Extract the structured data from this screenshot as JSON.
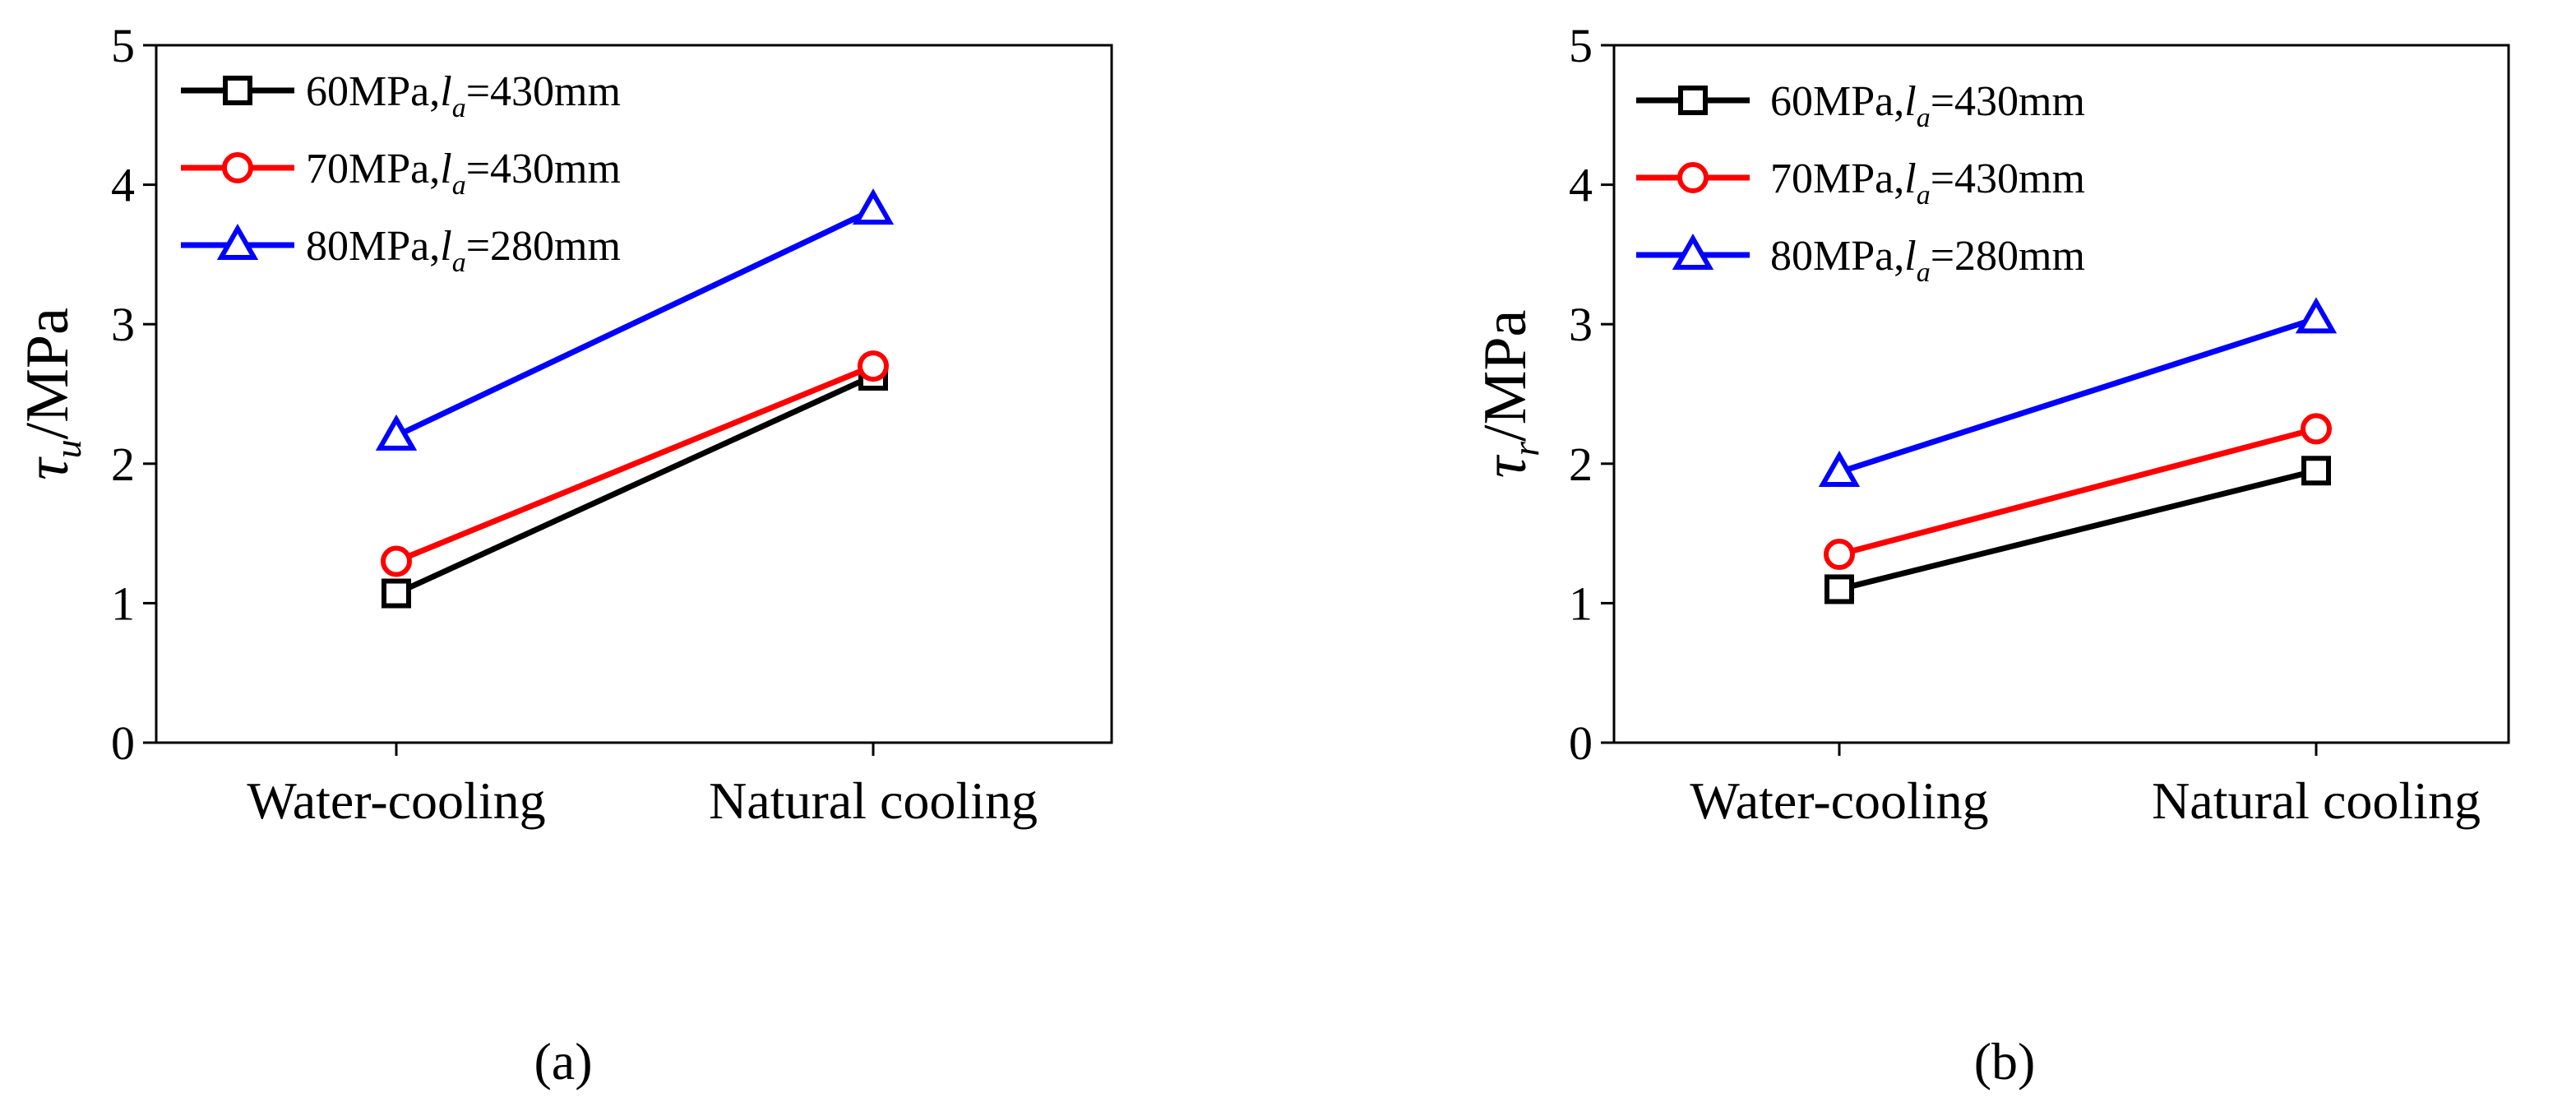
{
  "chart_data": [
    {
      "type": "line",
      "panel_label": "(a)",
      "ylabel": {
        "symbol": "τ",
        "subscript": "u",
        "unit": "/MPa"
      },
      "categories": [
        "Water-cooling",
        "Natural  cooling"
      ],
      "ylim": [
        0,
        5
      ],
      "yticks": [
        0,
        1,
        2,
        3,
        4,
        5
      ],
      "legend_position": "top-left",
      "series": [
        {
          "name": "60MPa,la=430mm",
          "legend_prefix": "60MPa,",
          "legend_var": "l",
          "legend_sub": "a",
          "legend_suffix": "=430mm",
          "color": "#000000",
          "marker": "square",
          "values": [
            1.07,
            2.63
          ]
        },
        {
          "name": "70MPa,la=430mm",
          "legend_prefix": "70MPa,",
          "legend_var": "l",
          "legend_sub": "a",
          "legend_suffix": "=430mm",
          "color": "#ff0000",
          "marker": "circle",
          "values": [
            1.3,
            2.7
          ]
        },
        {
          "name": "80MPa,la=280mm",
          "legend_prefix": "80MPa,",
          "legend_var": "l",
          "legend_sub": "a",
          "legend_suffix": "=280mm",
          "color": "#0000ff",
          "marker": "triangle",
          "values": [
            2.2,
            3.82
          ]
        }
      ]
    },
    {
      "type": "line",
      "panel_label": "(b)",
      "ylabel": {
        "symbol": "τ",
        "subscript": "r",
        "unit": "/MPa"
      },
      "categories": [
        "Water-cooling",
        "Natural cooling"
      ],
      "ylim": [
        0,
        5
      ],
      "yticks": [
        0,
        1,
        2,
        3,
        4,
        5
      ],
      "legend_position": "top-left",
      "series": [
        {
          "name": "60MPa,la=430mm",
          "legend_prefix": "60MPa,",
          "legend_var": "l",
          "legend_sub": "a",
          "legend_suffix": "=430mm",
          "color": "#000000",
          "marker": "square",
          "values": [
            1.1,
            1.95
          ]
        },
        {
          "name": "70MPa,la=430mm",
          "legend_prefix": "70MPa,",
          "legend_var": "l",
          "legend_sub": "a",
          "legend_suffix": "=430mm",
          "color": "#ff0000",
          "marker": "circle",
          "values": [
            1.35,
            2.25
          ]
        },
        {
          "name": "80MPa,la=280mm",
          "legend_prefix": "80MPa,",
          "legend_var": "l",
          "legend_sub": "a",
          "legend_suffix": "=280mm",
          "color": "#0000ff",
          "marker": "triangle",
          "values": [
            1.94,
            3.04
          ]
        }
      ]
    }
  ]
}
